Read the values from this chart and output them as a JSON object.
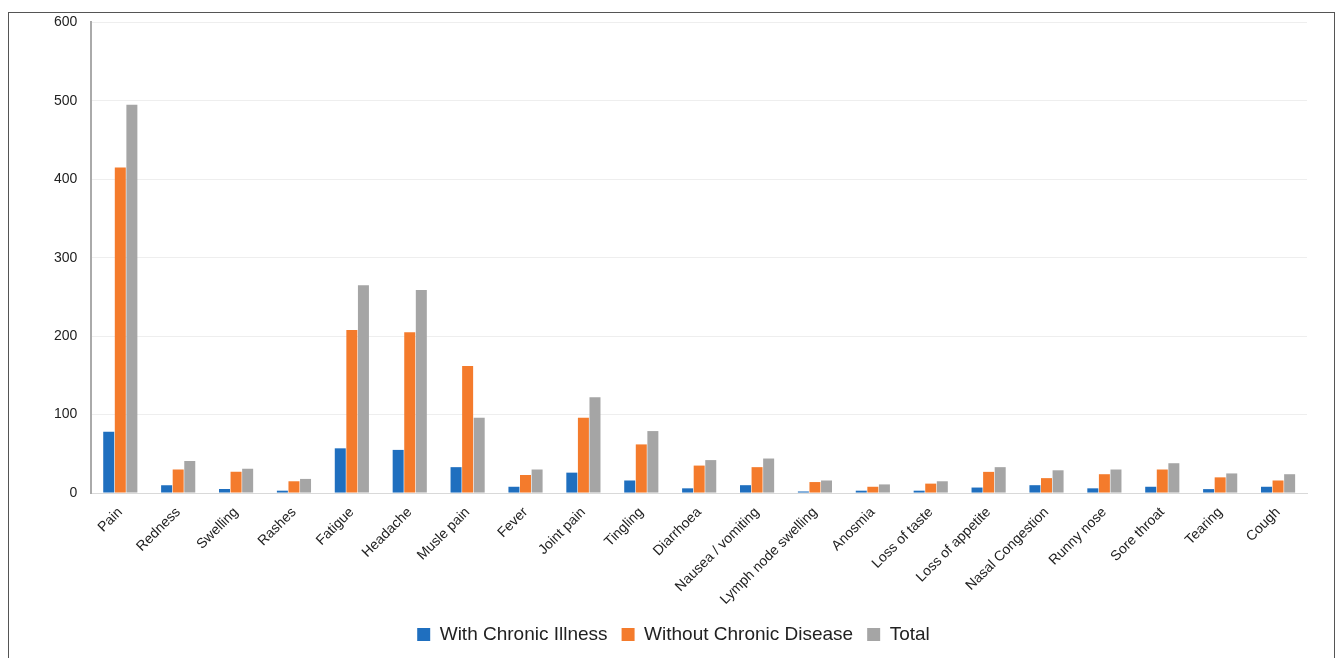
{
  "chart_data": {
    "type": "bar",
    "categories": [
      "Pain",
      "Redness",
      "Swelling",
      "Rashes",
      "Fatigue",
      "Headache",
      "Musle pain",
      "Fever",
      "Joint pain",
      "Tingling",
      "Diarrhoea",
      "Nausea / vomiting",
      "Lymph node swelling",
      "Anosmia",
      "Loss of taste",
      "Loss of appetite",
      "Nasal Congestion",
      "Runny nose",
      "Sore throat",
      "Tearing",
      "Cough"
    ],
    "series": [
      {
        "name": "With Chronic Illness",
        "color": "#1f6fbf",
        "values": [
          78,
          10,
          5,
          3,
          57,
          55,
          33,
          8,
          26,
          16,
          6,
          10,
          2,
          3,
          3,
          7,
          10,
          6,
          8,
          5,
          8
        ]
      },
      {
        "name": "Without Chronic Disease",
        "color": "#f47b2c",
        "values": [
          415,
          30,
          27,
          15,
          208,
          205,
          162,
          23,
          96,
          62,
          35,
          33,
          14,
          8,
          12,
          27,
          19,
          24,
          30,
          20,
          16
        ]
      },
      {
        "name": "Total",
        "color": "#a5a5a5",
        "values": [
          495,
          41,
          31,
          18,
          265,
          259,
          96,
          30,
          122,
          79,
          42,
          44,
          16,
          11,
          15,
          33,
          29,
          30,
          38,
          25,
          24
        ]
      }
    ],
    "ylim": [
      0,
      600
    ],
    "yticks": [
      0,
      100,
      200,
      300,
      400,
      500,
      600
    ],
    "grid": "y",
    "legend": "bottom"
  }
}
